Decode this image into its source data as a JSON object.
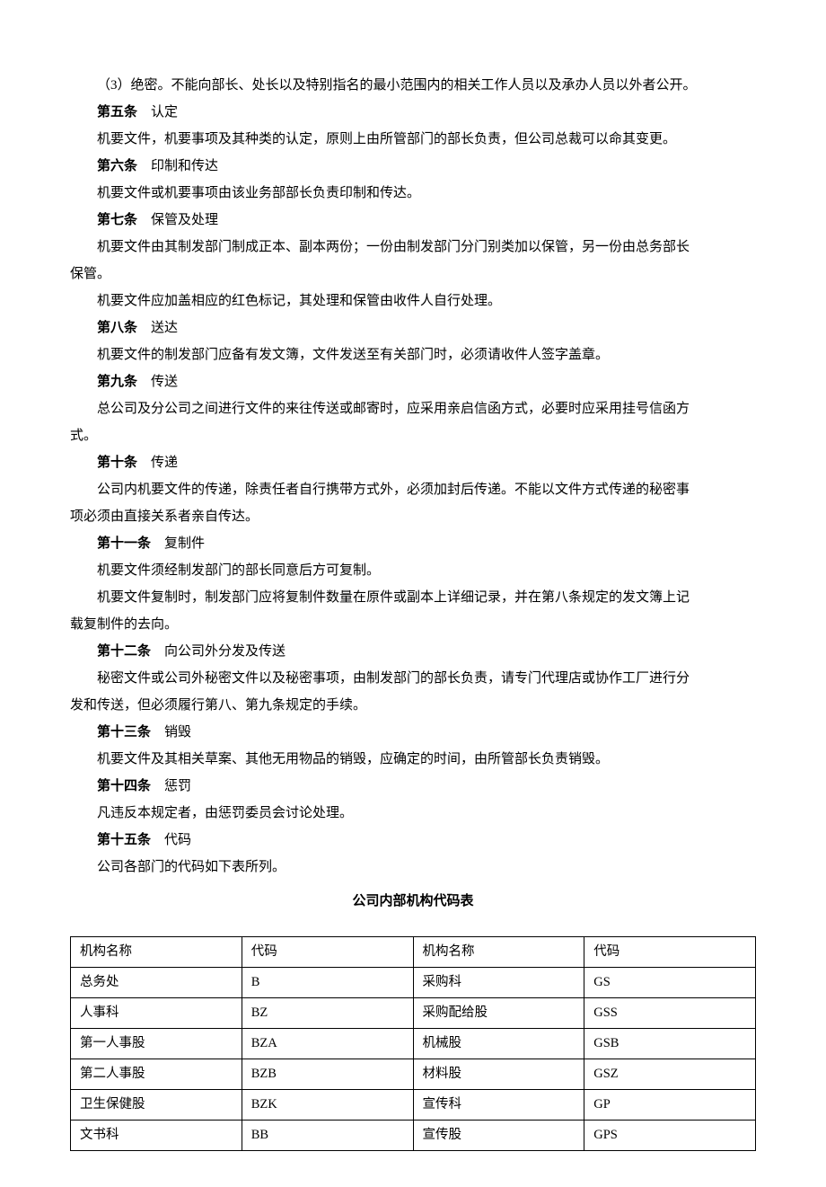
{
  "paragraphs": [
    {
      "type": "indent",
      "text": "（3）绝密。不能向部长、处长以及特别指名的最小范围内的相关工作人员以及承办人员以外者公开。"
    },
    {
      "type": "article",
      "title": "第五条",
      "subtitle": "认定"
    },
    {
      "type": "indent",
      "text": "机要文件，机要事项及其种类的认定，原则上由所管部门的部长负责，但公司总裁可以命其变更。"
    },
    {
      "type": "article",
      "title": "第六条",
      "subtitle": "印制和传达"
    },
    {
      "type": "indent",
      "text": "机要文件或机要事项由该业务部部长负责印制和传达。"
    },
    {
      "type": "article",
      "title": "第七条",
      "subtitle": "保管及处理"
    },
    {
      "type": "wrap",
      "text_indent": "机要文件由其制发部门制成正本、副本两份；一份由制发部门分门别类加以保管，另一份由总务部长",
      "text_cont": "保管。"
    },
    {
      "type": "indent",
      "text": "机要文件应加盖相应的红色标记，其处理和保管由收件人自行处理。"
    },
    {
      "type": "article",
      "title": "第八条",
      "subtitle": "送达"
    },
    {
      "type": "indent",
      "text": "机要文件的制发部门应备有发文簿，文件发送至有关部门时，必须请收件人签字盖章。"
    },
    {
      "type": "article",
      "title": "第九条",
      "subtitle": "传送"
    },
    {
      "type": "wrap",
      "text_indent": "总公司及分公司之间进行文件的来往传送或邮寄时，应采用亲启信函方式，必要时应采用挂号信函方",
      "text_cont": "式。"
    },
    {
      "type": "article",
      "title": "第十条",
      "subtitle": "传递"
    },
    {
      "type": "wrap",
      "text_indent": "公司内机要文件的传递，除责任者自行携带方式外，必须加封后传递。不能以文件方式传递的秘密事",
      "text_cont": "项必须由直接关系者亲自传达。"
    },
    {
      "type": "article",
      "title": "第十一条",
      "subtitle": "复制件"
    },
    {
      "type": "indent",
      "text": "机要文件须经制发部门的部长同意后方可复制。"
    },
    {
      "type": "wrap",
      "text_indent": "机要文件复制时，制发部门应将复制件数量在原件或副本上详细记录，并在第八条规定的发文簿上记",
      "text_cont": "载复制件的去向。"
    },
    {
      "type": "article",
      "title": "第十二条",
      "subtitle": "向公司外分发及传送"
    },
    {
      "type": "wrap",
      "text_indent": "秘密文件或公司外秘密文件以及秘密事项，由制发部门的部长负责，请专门代理店或协作工厂进行分",
      "text_cont": "发和传送，但必须履行第八、第九条规定的手续。"
    },
    {
      "type": "article",
      "title": "第十三条",
      "subtitle": "销毁"
    },
    {
      "type": "indent",
      "text": "机要文件及其相关草案、其他无用物品的销毁，应确定的时间，由所管部长负责销毁。"
    },
    {
      "type": "article",
      "title": "第十四条",
      "subtitle": "惩罚"
    },
    {
      "type": "indent",
      "text": "凡违反本规定者，由惩罚委员会讨论处理。"
    },
    {
      "type": "article",
      "title": "第十五条",
      "subtitle": "代码"
    },
    {
      "type": "indent",
      "text": "公司各部门的代码如下表所列。"
    }
  ],
  "table_title": "公司内部机构代码表",
  "table": {
    "headers": [
      "机构名称",
      "代码",
      "机构名称",
      "代码"
    ],
    "rows": [
      [
        "总务处",
        "B",
        "采购科",
        "GS"
      ],
      [
        "人事科",
        "BZ",
        "采购配给股",
        "GSS"
      ],
      [
        "第一人事股",
        "BZA",
        "机械股",
        "GSB"
      ],
      [
        "第二人事股",
        "BZB",
        "材料股",
        "GSZ"
      ],
      [
        "卫生保健股",
        "BZK",
        "宣传科",
        "GP"
      ],
      [
        "文书科",
        "BB",
        "宣传股",
        "GPS"
      ]
    ]
  }
}
